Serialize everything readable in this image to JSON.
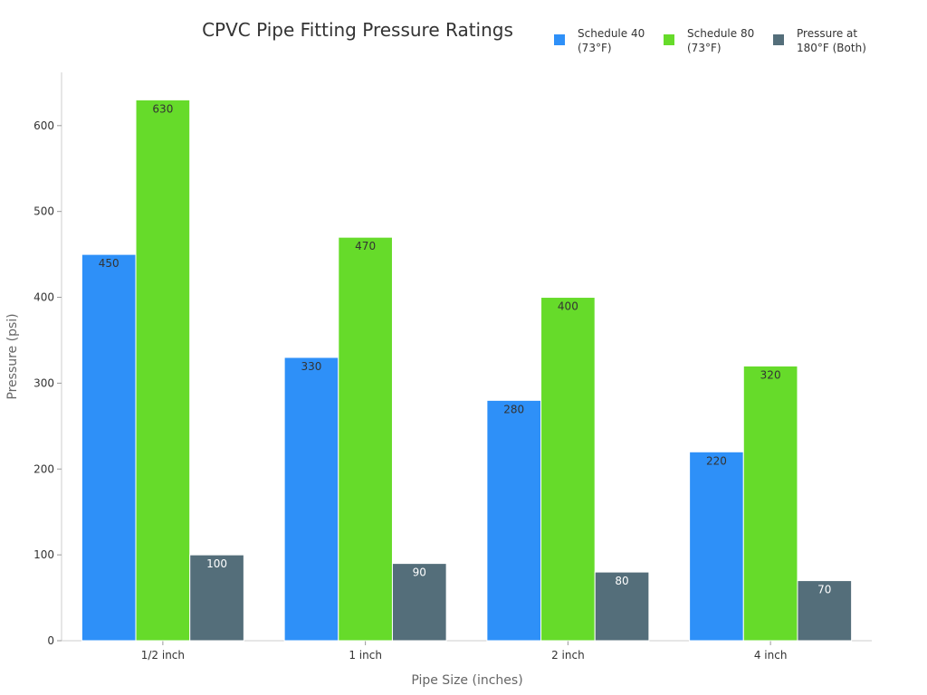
{
  "chart_data": {
    "type": "bar",
    "title": "CPVC Pipe Fitting Pressure Ratings",
    "xlabel": "Pipe Size (inches)",
    "ylabel": "Pressure (psi)",
    "categories": [
      "1/2 inch",
      "1 inch",
      "2 inch",
      "4 inch"
    ],
    "series": [
      {
        "name": "Schedule 40 (73°F)",
        "legend_lines": [
          "Schedule 40",
          "(73°F)"
        ],
        "color": "#2e90f8",
        "label_color": "#333333",
        "values": [
          450,
          330,
          280,
          220
        ]
      },
      {
        "name": "Schedule 80 (73°F)",
        "legend_lines": [
          "Schedule 80",
          "(73°F)"
        ],
        "color": "#66db2a",
        "label_color": "#333333",
        "values": [
          630,
          470,
          400,
          320
        ]
      },
      {
        "name": "Pressure at 180°F (Both)",
        "legend_lines": [
          "Pressure at",
          "180°F (Both)"
        ],
        "color": "#546e7a",
        "label_color": "#ffffff",
        "values": [
          100,
          90,
          80,
          70
        ]
      }
    ],
    "ylim": [
      0,
      662
    ],
    "yticks": [
      0,
      100,
      200,
      300,
      400,
      500,
      600
    ],
    "grid": false,
    "legend_position": "top-right",
    "data_labels": true
  }
}
